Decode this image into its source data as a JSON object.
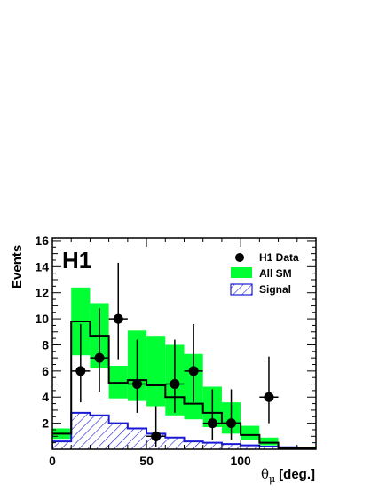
{
  "chart_data": {
    "type": "bar",
    "experiment_label": "H1",
    "xlabel": "θ",
    "xlabel_sub": "μ",
    "xlabel_unit": "[deg.]",
    "ylabel": "Events",
    "xlim": [
      0,
      140
    ],
    "ylim": [
      0,
      16.2
    ],
    "x_ticks": [
      0,
      50,
      100
    ],
    "y_ticks": [
      2,
      4,
      6,
      8,
      10,
      12,
      14,
      16
    ],
    "bin_edges": [
      0,
      10,
      20,
      30,
      40,
      50,
      60,
      70,
      80,
      90,
      100,
      110,
      120,
      130,
      140
    ],
    "series": [
      {
        "name": "All SM",
        "kind": "step_with_band",
        "values": [
          1.2,
          9.8,
          8.7,
          5.1,
          5.3,
          4.9,
          4.0,
          3.5,
          2.8,
          2.0,
          1.1,
          0.5,
          0.1,
          0.1
        ],
        "band_low": [
          0.8,
          7.2,
          6.2,
          3.9,
          3.7,
          3.3,
          2.6,
          2.3,
          1.7,
          1.2,
          0.7,
          0.3,
          0.05,
          0.05
        ],
        "band_high": [
          1.6,
          12.4,
          11.2,
          6.4,
          9.1,
          8.7,
          8.0,
          7.3,
          4.8,
          3.6,
          1.8,
          0.9,
          0.2,
          0.2
        ],
        "line_color": "#000000",
        "band_color": "#00ff33"
      },
      {
        "name": "Signal",
        "kind": "hatched_histogram",
        "values": [
          0.6,
          2.8,
          2.6,
          2.0,
          1.6,
          1.2,
          0.9,
          0.6,
          0.5,
          0.4,
          0.3,
          0.2,
          0.15,
          0.1
        ],
        "color": "#1a1ad6"
      },
      {
        "name": "H1 Data",
        "kind": "points_with_errors",
        "x": [
          15,
          25,
          35,
          45,
          55,
          65,
          75,
          85,
          95,
          115
        ],
        "y": [
          6,
          7,
          10,
          5,
          1,
          5,
          6,
          2,
          2,
          4
        ],
        "err_low": [
          2.4,
          2.6,
          3.1,
          2.2,
          0.8,
          2.2,
          2.4,
          1.3,
          1.3,
          2.0
        ],
        "err_high": [
          3.6,
          3.8,
          4.3,
          3.4,
          2.3,
          3.4,
          3.6,
          2.6,
          2.6,
          3.1
        ],
        "color": "#000000"
      }
    ],
    "legend": [
      {
        "label": "H1 Data",
        "symbol": "marker"
      },
      {
        "label": "All SM",
        "symbol": "band"
      },
      {
        "label": "Signal",
        "symbol": "hatch"
      }
    ],
    "legend_position": "top-right",
    "grid": false
  }
}
